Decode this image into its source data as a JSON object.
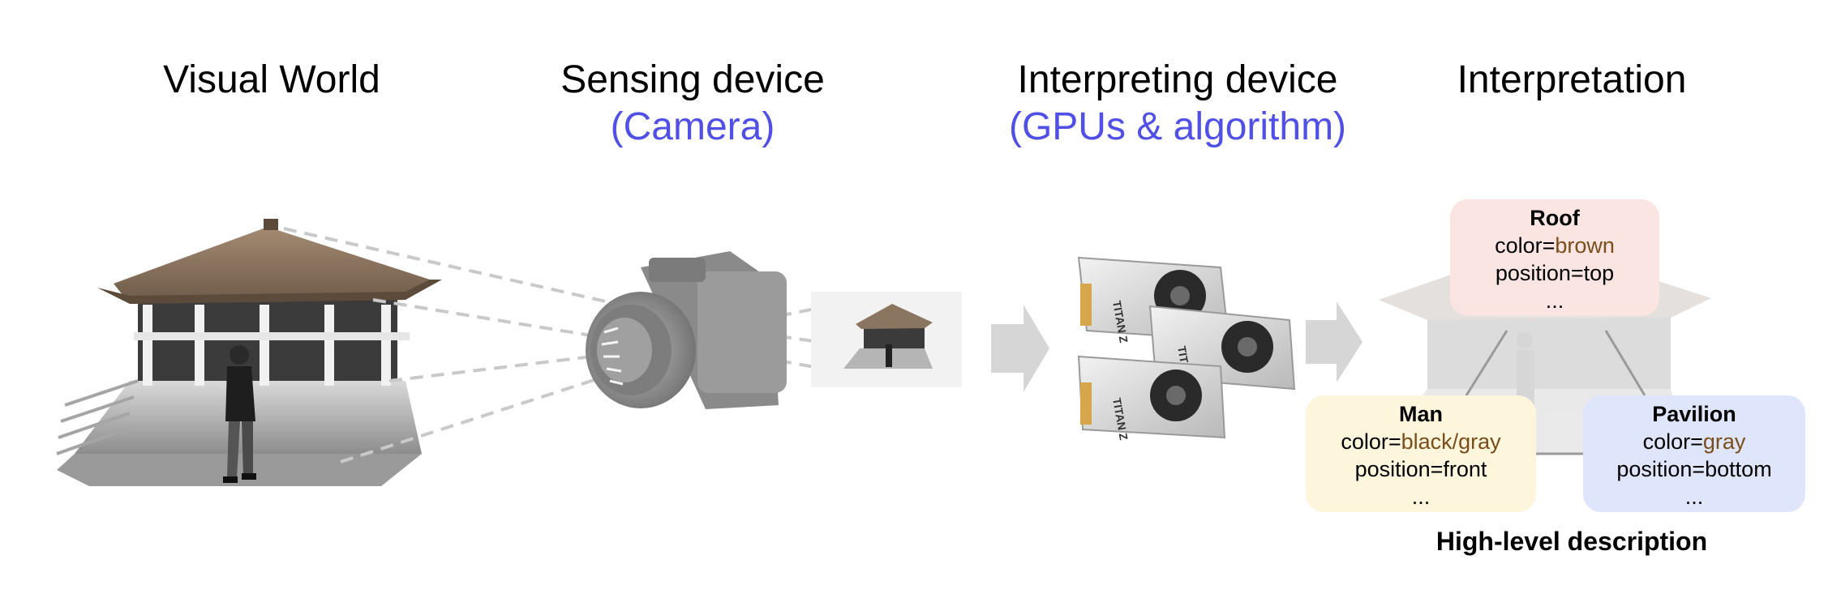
{
  "headings": {
    "visual_world": "Visual World",
    "sensing": "Sensing device",
    "sensing_sub": "(Camera)",
    "interpreting": "Interpreting device",
    "interpreting_sub": "(GPUs & algorithm)",
    "interpretation": "Interpretation"
  },
  "cards": {
    "roof": {
      "title": "Roof",
      "color_prefix": "color=",
      "color_value": "brown",
      "position": "position=top",
      "more": "..."
    },
    "man": {
      "title": "Man",
      "color_prefix": "color=",
      "color_value": "black/gray",
      "position": "position=front",
      "more": "..."
    },
    "pavilion": {
      "title": "Pavilion",
      "color_prefix": "color=",
      "color_value": "gray",
      "position": "position=bottom",
      "more": "..."
    }
  },
  "gpu_label": "TITAN Z",
  "caption": "High-level description",
  "colors": {
    "accent_blue": "#5050e6",
    "value_brown": "#7a4d1b",
    "roof_card": "#fbe5e3",
    "man_card": "#fdf5dc",
    "pavilion_card": "#dfe6fb",
    "arrow_gray": "#d6d6d6"
  },
  "icons": [
    "pavilion-illustration",
    "person-illustration",
    "camera-icon",
    "gpu-card-icon",
    "arrow-right-icon"
  ]
}
